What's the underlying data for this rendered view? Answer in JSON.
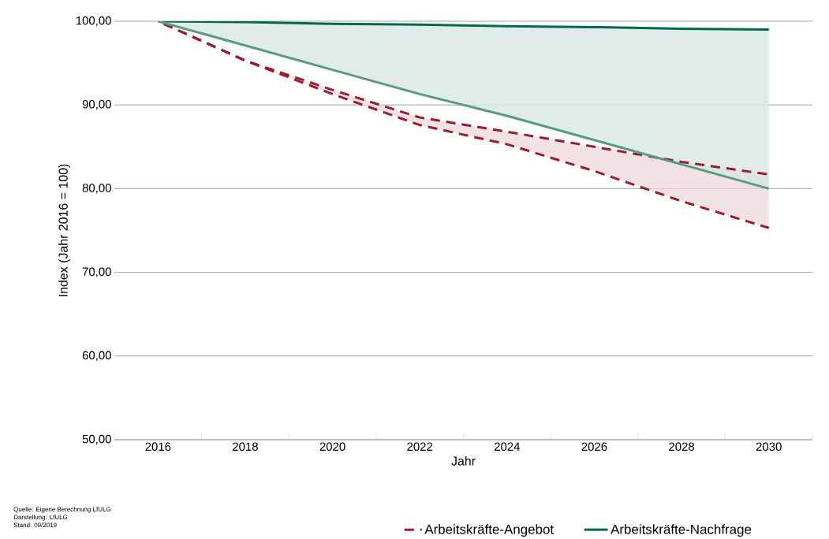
{
  "chart_data": {
    "type": "line",
    "xlabel": "Jahr",
    "ylabel": "Index (Jahr 2016 = 100)",
    "categories": [
      "2016",
      "2018",
      "2020",
      "2022",
      "2024",
      "2026",
      "2028",
      "2030"
    ],
    "series": [
      {
        "name": "Arbeitskräfte-Angebot",
        "color": "#9b1b30",
        "line_style": "dashed",
        "values": [
          100,
          95.3,
          91.8,
          88.5,
          86.8,
          85.0,
          83.2,
          81.7
        ],
        "lower": [
          100,
          95.3,
          91.3,
          87.6,
          85.3,
          82.1,
          78.5,
          75.3
        ],
        "upper": [
          100,
          95.3,
          91.8,
          88.5,
          86.8,
          85.0,
          83.2,
          81.7
        ]
      },
      {
        "color": "#9b1b30",
        "line_style": "dashed",
        "values": [
          100,
          95.3,
          91.3,
          87.6,
          85.3,
          82.1,
          78.5,
          75.3
        ]
      },
      {
        "name": "Arbeitskräfte-Nachfrage",
        "color": "#006a4e",
        "line_style": "solid",
        "values": [
          100,
          99.9,
          99.7,
          99.6,
          99.4,
          99.3,
          99.1,
          99.0
        ],
        "lower": [
          100,
          97.1,
          94.2,
          91.3,
          88.7,
          85.8,
          82.9,
          80.0
        ],
        "upper": [
          100,
          99.9,
          99.7,
          99.6,
          99.4,
          99.3,
          99.1,
          99.0
        ]
      },
      {
        "color": "#5a9a80",
        "line_style": "solid",
        "values": [
          100,
          97.1,
          94.2,
          91.3,
          88.7,
          85.8,
          82.9,
          80.0
        ]
      }
    ],
    "ylim": [
      50,
      100
    ],
    "yticks": [
      {
        "value": 50,
        "label": "50,00"
      },
      {
        "value": 60,
        "label": "60,00"
      },
      {
        "value": 70,
        "label": "70,00"
      },
      {
        "value": 80,
        "label": "80,00"
      },
      {
        "value": 90,
        "label": "90,00"
      },
      {
        "value": 100,
        "label": "100,00"
      }
    ],
    "grid": "y",
    "legend": "bottom",
    "marker": "none",
    "annotations": [
      "Quelle: Eigene Berechnung LfULG",
      "Darstellung: LfULG",
      "Stand: 09/2019"
    ]
  }
}
